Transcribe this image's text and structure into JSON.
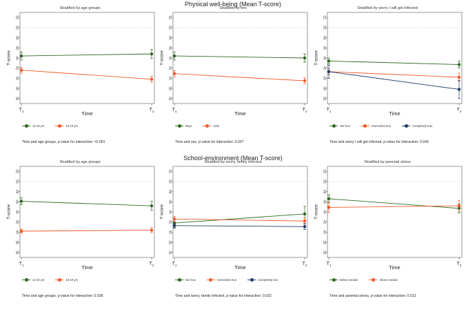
{
  "section_titles": {
    "top": "Physical well-being (Mean T-score)",
    "bottom": "School-environment (Mean T-score)"
  },
  "colors": {
    "green": "#2d6a1f",
    "orange": "#f05a28",
    "navy": "#1f3a68",
    "axis": "#555555",
    "reference_line": "#999999"
  },
  "chart_data": [
    {
      "type": "line",
      "title": "Stratified by age groups",
      "xlabel": "Time",
      "ylabel": "T-score",
      "categories": [
        "T1",
        "T2"
      ],
      "category_labels": [
        {
          "base": "T",
          "sub": "1"
        },
        {
          "base": "T",
          "sub": "2"
        }
      ],
      "ylim": [
        35,
        53
      ],
      "yticks": [
        36,
        38,
        40,
        42,
        44,
        46,
        48,
        50,
        52
      ],
      "reference_line": 50,
      "series": [
        {
          "name": "12-15 yrs",
          "color": "#2d6a1f",
          "values": [
            44.4,
            44.8
          ],
          "err": [
            0.8,
            0.9
          ]
        },
        {
          "name": "16-19 yrs",
          "color": "#f05a28",
          "values": [
            41.6,
            39.8
          ],
          "err": [
            0.6,
            0.6
          ]
        }
      ],
      "caption": "Time and age groups, p-value for interaction: <0.001"
    },
    {
      "type": "line",
      "title": "Stratified by sex",
      "xlabel": "Time",
      "ylabel": "T-score",
      "categories": [
        "T1",
        "T2"
      ],
      "category_labels": [
        {
          "base": "T",
          "sub": "1"
        },
        {
          "base": "T",
          "sub": "2"
        }
      ],
      "ylim": [
        35,
        53
      ],
      "yticks": [
        36,
        38,
        40,
        42,
        44,
        46,
        48,
        50,
        52
      ],
      "reference_line": 50,
      "series": [
        {
          "name": "Boys",
          "color": "#2d6a1f",
          "values": [
            44.4,
            44.0
          ],
          "err": [
            0.8,
            0.8
          ]
        },
        {
          "name": "Girls",
          "color": "#f05a28",
          "values": [
            40.9,
            39.5
          ],
          "err": [
            0.6,
            0.6
          ]
        }
      ],
      "caption": "Time and sex, p-value for interaction: 0.037"
    },
    {
      "type": "line",
      "title": "Stratified by worry I will get infected",
      "xlabel": "Time",
      "ylabel": "T-score",
      "categories": [
        "T1",
        "T2"
      ],
      "category_labels": [
        {
          "base": "T",
          "sub": "1"
        },
        {
          "base": "T",
          "sub": "2"
        }
      ],
      "ylim": [
        35,
        53
      ],
      "yticks": [
        36,
        38,
        40,
        42,
        44,
        46,
        48,
        50,
        52
      ],
      "reference_line": 50,
      "series": [
        {
          "name": "Not true",
          "color": "#2d6a1f",
          "values": [
            43.4,
            42.7
          ],
          "err": [
            0.6,
            0.7
          ]
        },
        {
          "name": "Somewhat true",
          "color": "#f05a28",
          "values": [
            41.3,
            40.2
          ],
          "err": [
            0.6,
            0.8
          ]
        },
        {
          "name": "Completely true",
          "color": "#1f3a68",
          "values": [
            41.3,
            37.8
          ],
          "err": [
            1.3,
            1.8
          ]
        }
      ],
      "caption": "Time and worry I will get infected, p-value for interaction: 0.042"
    },
    {
      "type": "line",
      "title": "Stratified by age groups",
      "xlabel": "Time",
      "ylabel": "T-score",
      "categories": [
        "T1",
        "T2"
      ],
      "category_labels": [
        {
          "base": "T",
          "sub": "1"
        },
        {
          "base": "T",
          "sub": "2"
        }
      ],
      "ylim": [
        35,
        53
      ],
      "yticks": [
        36,
        38,
        40,
        42,
        44,
        46,
        48,
        50,
        52
      ],
      "reference_line": 50,
      "series": [
        {
          "name": "12-15 yrs",
          "color": "#2d6a1f",
          "values": [
            46.1,
            45.2
          ],
          "err": [
            0.7,
            0.9
          ]
        },
        {
          "name": "16-19 yrs",
          "color": "#f05a28",
          "values": [
            40.2,
            40.4
          ],
          "err": [
            0.4,
            0.5
          ]
        }
      ],
      "caption": "Time and age groups, p-value for interaction: 0.036"
    },
    {
      "type": "line",
      "title": "Stratified by worry, family infected",
      "xlabel": "Time",
      "ylabel": "T-score",
      "categories": [
        "T1",
        "T2"
      ],
      "category_labels": [
        {
          "base": "T",
          "sub": "1"
        },
        {
          "base": "T",
          "sub": "2"
        }
      ],
      "ylim": [
        35,
        53
      ],
      "yticks": [
        36,
        38,
        40,
        42,
        44,
        46,
        48,
        50,
        52
      ],
      "reference_line": 50,
      "series": [
        {
          "name": "Not true",
          "color": "#2d6a1f",
          "values": [
            41.8,
            43.6
          ],
          "err": [
            0.9,
            1.5
          ]
        },
        {
          "name": "Somewhat true",
          "color": "#f05a28",
          "values": [
            42.6,
            42.2
          ],
          "err": [
            0.5,
            0.6
          ]
        },
        {
          "name": "Completely true",
          "color": "#1f3a68",
          "values": [
            41.3,
            41.1
          ],
          "err": [
            0.5,
            0.6
          ]
        }
      ],
      "caption": "Time and worry, family infected, p-value for interaction: 0.032"
    },
    {
      "type": "line",
      "title": "Stratified by parental stress",
      "xlabel": "Time",
      "ylabel": "T-score",
      "categories": [
        "T1",
        "T2"
      ],
      "category_labels": [
        {
          "base": "T",
          "sub": "1"
        },
        {
          "base": "T",
          "sub": "2"
        }
      ],
      "ylim": [
        35,
        53
      ],
      "yticks": [
        36,
        38,
        40,
        42,
        44,
        46,
        48,
        50,
        52
      ],
      "reference_line": 50,
      "series": [
        {
          "name": "Below median",
          "color": "#2d6a1f",
          "values": [
            46.6,
            44.7
          ],
          "err": [
            0.8,
            0.9
          ]
        },
        {
          "name": "Above median",
          "color": "#f05a28",
          "values": [
            44.9,
            45.2
          ],
          "err": [
            1.0,
            1.1
          ]
        }
      ],
      "caption": "Time and parental stress, p-value for interaction: 0.012"
    }
  ]
}
